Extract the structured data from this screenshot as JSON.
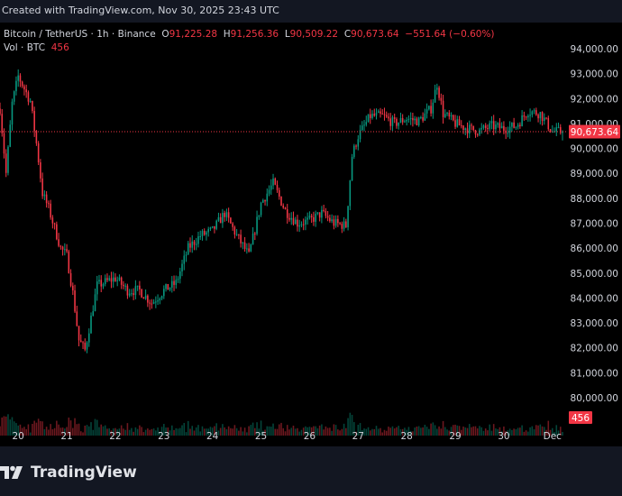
{
  "header": {
    "created_by": "Created with TradingView.com, Nov 30, 2025 23:43 UTC"
  },
  "legend": {
    "symbol": "Bitcoin / TetherUS · 1h · Binance",
    "open_label": "O",
    "open": "91,225.28",
    "high_label": "H",
    "high": "91,256.36",
    "low_label": "L",
    "low": "90,509.22",
    "close_label": "C",
    "close": "90,673.64",
    "change": "−551.64 (−0.60%)",
    "volume_label": "Vol · BTC",
    "volume": "456"
  },
  "colors": {
    "up": "#089981",
    "down": "#f23645",
    "background": "#000000",
    "text": "#d1d4dc",
    "price_line": "#f23645"
  },
  "footer": {
    "brand": "TradingView"
  },
  "chart_data": {
    "type": "candlestick",
    "symbol": "Bitcoin / TetherUS",
    "interval": "1h",
    "exchange": "Binance",
    "ylim": [
      79200,
      94800
    ],
    "y_ticks": [
      "80,000.00",
      "81,000.00",
      "82,000.00",
      "83,000.00",
      "84,000.00",
      "85,000.00",
      "86,000.00",
      "87,000.00",
      "88,000.00",
      "89,000.00",
      "90,000.00",
      "91,000.00",
      "92,000.00",
      "93,000.00",
      "94,000.00"
    ],
    "y_tick_values": [
      80000,
      81000,
      82000,
      83000,
      84000,
      85000,
      86000,
      87000,
      88000,
      89000,
      90000,
      91000,
      92000,
      93000,
      94000
    ],
    "x_ticks": [
      "20",
      "21",
      "22",
      "23",
      "24",
      "25",
      "26",
      "27",
      "28",
      "29",
      "30",
      "Dec"
    ],
    "x_tick_values": [
      "2025-11-20",
      "2025-11-21",
      "2025-11-22",
      "2025-11-23",
      "2025-11-24",
      "2025-11-25",
      "2025-11-26",
      "2025-11-27",
      "2025-11-28",
      "2025-11-29",
      "2025-11-30",
      "2025-12-01"
    ],
    "x_start": "2025-11-19T15:00",
    "x_end": "2025-12-01T05:00",
    "last_price": 90673.64,
    "last_price_label": "90,673.64",
    "last_volume_label": "456",
    "grid": false,
    "close_path": [
      [
        "2025-11-19T15:00",
        91600
      ],
      [
        "2025-11-19T18:00",
        89000
      ],
      [
        "2025-11-19T21:00",
        91800
      ],
      [
        "2025-11-20T00:00",
        92900
      ],
      [
        "2025-11-20T03:00",
        92400
      ],
      [
        "2025-11-20T06:00",
        91900
      ],
      [
        "2025-11-20T09:00",
        90200
      ],
      [
        "2025-11-20T12:00",
        88200
      ],
      [
        "2025-11-20T15:00",
        87600
      ],
      [
        "2025-11-20T18:00",
        86800
      ],
      [
        "2025-11-20T21:00",
        86000
      ],
      [
        "2025-11-21T00:00",
        85700
      ],
      [
        "2025-11-21T03:00",
        84200
      ],
      [
        "2025-11-21T06:00",
        82300
      ],
      [
        "2025-11-21T09:00",
        81900
      ],
      [
        "2025-11-21T12:00",
        83200
      ],
      [
        "2025-11-21T15:00",
        84500
      ],
      [
        "2025-11-21T18:00",
        84600
      ],
      [
        "2025-11-22T00:00",
        84800
      ],
      [
        "2025-11-22T06:00",
        84300
      ],
      [
        "2025-11-22T12:00",
        84300
      ],
      [
        "2025-11-22T18:00",
        83800
      ],
      [
        "2025-11-23T00:00",
        84300
      ],
      [
        "2025-11-23T06:00",
        84600
      ],
      [
        "2025-11-23T12:00",
        86000
      ],
      [
        "2025-11-23T18:00",
        86500
      ],
      [
        "2025-11-24T00:00",
        86700
      ],
      [
        "2025-11-24T06:00",
        87400
      ],
      [
        "2025-11-24T12:00",
        86500
      ],
      [
        "2025-11-24T18:00",
        85700
      ],
      [
        "2025-11-25T00:00",
        87800
      ],
      [
        "2025-11-25T06:00",
        88600
      ],
      [
        "2025-11-25T12:00",
        87500
      ],
      [
        "2025-11-25T18:00",
        87000
      ],
      [
        "2025-11-26T00:00",
        87100
      ],
      [
        "2025-11-26T06:00",
        87400
      ],
      [
        "2025-11-26T12:00",
        87000
      ],
      [
        "2025-11-26T18:00",
        86900
      ],
      [
        "2025-11-26T21:00",
        89700
      ],
      [
        "2025-11-27T00:00",
        90500
      ],
      [
        "2025-11-27T06:00",
        91300
      ],
      [
        "2025-11-27T12:00",
        91300
      ],
      [
        "2025-11-27T18:00",
        91000
      ],
      [
        "2025-11-28T00:00",
        91200
      ],
      [
        "2025-11-28T06:00",
        91100
      ],
      [
        "2025-11-28T12:00",
        91600
      ],
      [
        "2025-11-28T15:00",
        92600
      ],
      [
        "2025-11-28T18:00",
        91400
      ],
      [
        "2025-11-29T00:00",
        91000
      ],
      [
        "2025-11-29T06:00",
        90800
      ],
      [
        "2025-11-29T12:00",
        90700
      ],
      [
        "2025-11-29T18:00",
        90900
      ],
      [
        "2025-11-30T00:00",
        90800
      ],
      [
        "2025-11-30T06:00",
        90900
      ],
      [
        "2025-11-30T12:00",
        91500
      ],
      [
        "2025-11-30T18:00",
        91400
      ],
      [
        "2025-12-01T00:00",
        90673.64
      ]
    ]
  }
}
